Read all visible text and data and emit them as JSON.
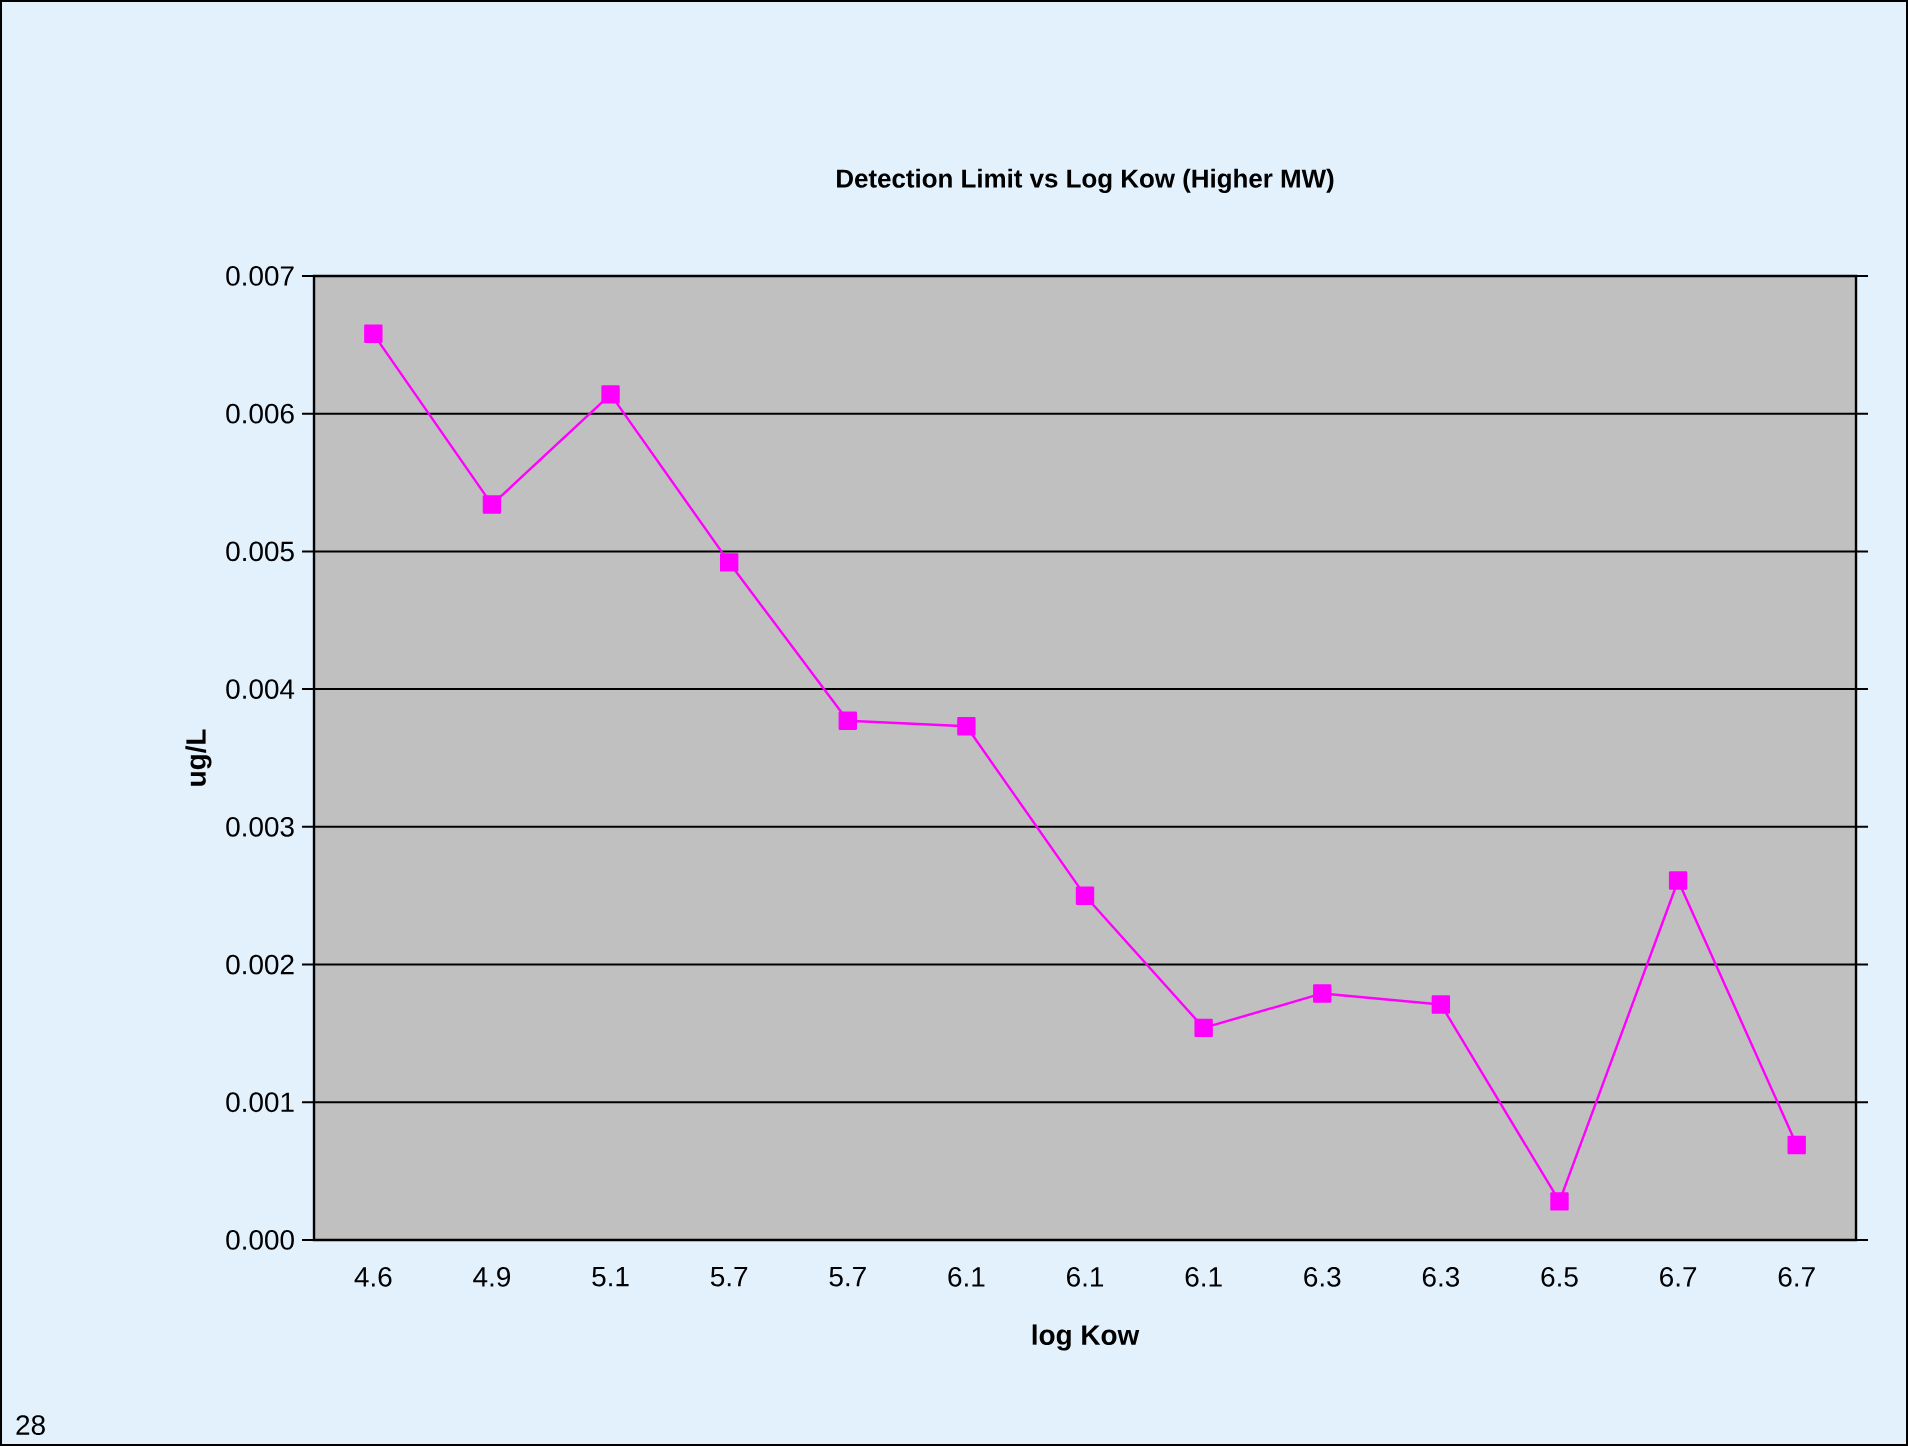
{
  "chart_data": {
    "type": "line",
    "title": "Detection Limit vs Log Kow (Higher MW)",
    "xlabel": "log Kow",
    "ylabel": "ug/L",
    "categories": [
      "4.6",
      "4.9",
      "5.1",
      "5.7",
      "5.7",
      "6.1",
      "6.1",
      "6.1",
      "6.3",
      "6.3",
      "6.5",
      "6.7",
      "6.7"
    ],
    "series": [
      {
        "color": "#ff00ff",
        "values": [
          0.00658,
          0.00534,
          0.00614,
          0.00492,
          0.00377,
          0.00373,
          0.0025,
          0.00154,
          0.00179,
          0.00171,
          0.00028,
          0.00261,
          0.00069
        ]
      }
    ],
    "ylim": [
      0,
      0.007
    ],
    "yticks": [
      {
        "value": 0,
        "label": "0.000"
      },
      {
        "value": 0.001,
        "label": "0.001"
      },
      {
        "value": 0.002,
        "label": "0.002"
      },
      {
        "value": 0.003,
        "label": "0.003"
      },
      {
        "value": 0.004,
        "label": "0.004"
      },
      {
        "value": 0.005,
        "label": "0.005"
      },
      {
        "value": 0.006,
        "label": "0.006"
      },
      {
        "value": 0.007,
        "label": "0.007"
      }
    ],
    "grid": "y",
    "marker": "square",
    "line_style": "solid",
    "annotations": [
      "28"
    ]
  }
}
